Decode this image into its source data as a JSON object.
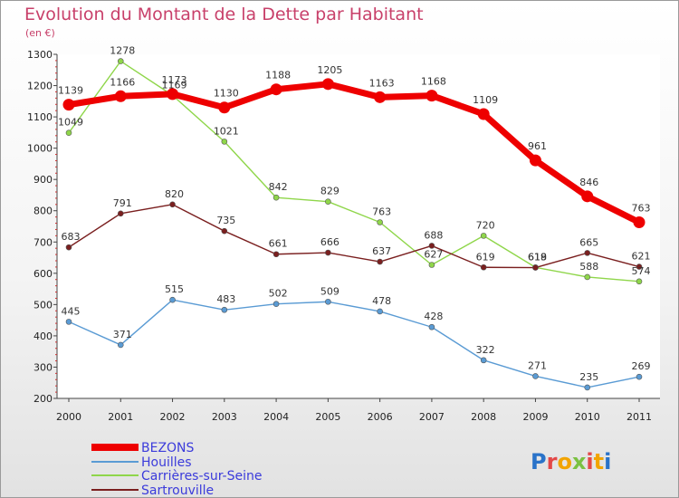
{
  "title": "Evolution du Montant de la Dette par Habitant",
  "unit_label": "(en €)",
  "logo_text": "Proxiti",
  "chart_data": {
    "type": "line",
    "title": "Evolution du Montant de la Dette par Habitant",
    "ylabel": "(en €)",
    "x": [
      "2000",
      "2001",
      "2002",
      "2003",
      "2004",
      "2005",
      "2006",
      "2007",
      "2008",
      "2009",
      "2010",
      "2011"
    ],
    "ylim": [
      200,
      1300
    ],
    "yticks": [
      "200",
      "300",
      "400",
      "500",
      "600",
      "700",
      "800",
      "900",
      "1000",
      "1100",
      "1200",
      "1300"
    ],
    "grid": false,
    "legend_position": "bottom-left",
    "series": [
      {
        "name": "BEZONS",
        "color": "#ee0000",
        "values": [
          1139,
          1166,
          1173,
          1130,
          1188,
          1205,
          1163,
          1168,
          1109,
          961,
          846,
          763
        ]
      },
      {
        "name": "Houilles",
        "color": "#5a9bd4",
        "values": [
          445,
          371,
          515,
          483,
          502,
          509,
          478,
          428,
          322,
          271,
          235,
          269
        ]
      },
      {
        "name": "Carrières-sur-Seine",
        "color": "#8fd64a",
        "values": [
          1049,
          1278,
          1169,
          1021,
          842,
          829,
          763,
          627,
          720,
          619,
          588,
          574
        ]
      },
      {
        "name": "Sartrouville",
        "color": "#7a1f1f",
        "values": [
          683,
          791,
          820,
          735,
          661,
          666,
          637,
          688,
          619,
          618,
          665,
          621
        ]
      }
    ]
  }
}
